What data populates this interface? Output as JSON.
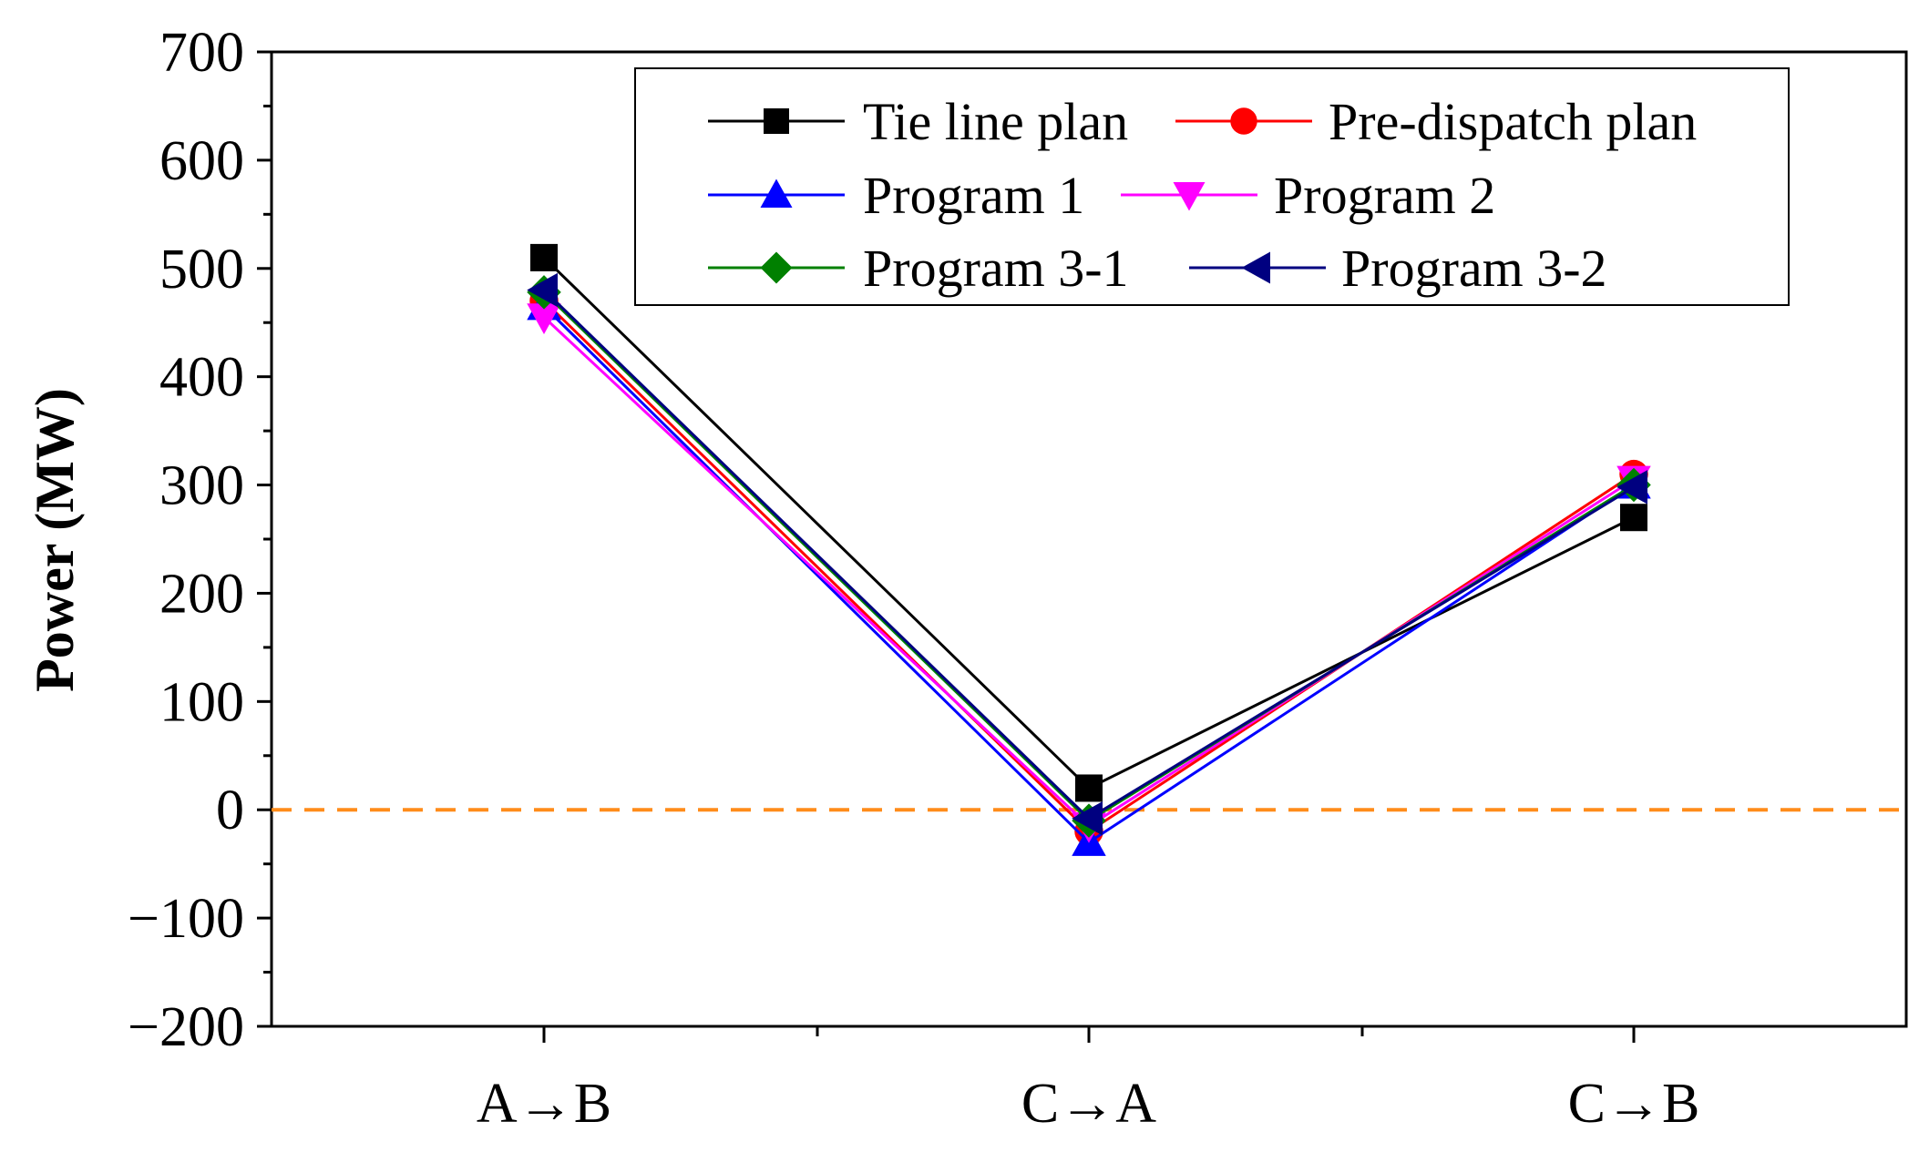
{
  "chart_data": {
    "type": "line",
    "title": "",
    "xlabel": "",
    "ylabel": "Power (MW)",
    "categories": [
      "A→B",
      "C→A",
      "C→B"
    ],
    "ylim": [
      -200,
      700
    ],
    "yticks": [
      "−200",
      "−100",
      "0",
      "100",
      "200",
      "300",
      "400",
      "500",
      "600",
      "700"
    ],
    "ytick_values": [
      -200,
      -100,
      0,
      100,
      200,
      300,
      400,
      500,
      600,
      700
    ],
    "reference_line": {
      "value": 0,
      "color": "#ff8c1a",
      "style": "dashed"
    },
    "legend_position": "top-right",
    "series": [
      {
        "name": "Tie line plan",
        "color": "#000000",
        "marker": "square",
        "values": [
          510,
          20,
          270
        ]
      },
      {
        "name": "Pre-dispatch plan",
        "color": "#ff0000",
        "marker": "circle",
        "values": [
          470,
          -20,
          310
        ]
      },
      {
        "name": "Program 1",
        "color": "#0000ff",
        "marker": "triangle-up",
        "values": [
          465,
          -30,
          300
        ]
      },
      {
        "name": "Program 2",
        "color": "#ff00ff",
        "marker": "triangle-down",
        "values": [
          455,
          -15,
          305
        ]
      },
      {
        "name": "Program 3-1",
        "color": "#008000",
        "marker": "diamond",
        "values": [
          478,
          -10,
          300
        ]
      },
      {
        "name": "Program 3-2",
        "color": "#000080",
        "marker": "triangle-left",
        "values": [
          480,
          -8,
          298
        ]
      }
    ]
  }
}
